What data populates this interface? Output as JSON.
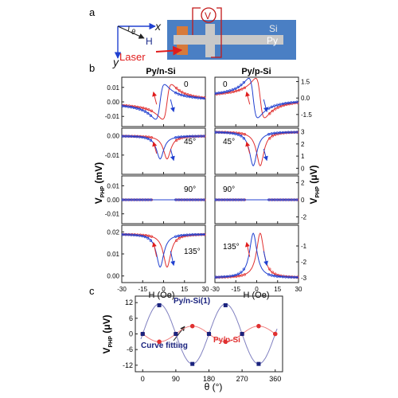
{
  "labels": {
    "a": "a",
    "b": "b",
    "c": "c"
  },
  "schematic": {
    "x_label": "x",
    "y_label": "y",
    "h_label": "H",
    "theta_label": "θ",
    "si_label": "Si",
    "py_label": "Py",
    "v_label": "V",
    "laser_label": "Laser",
    "colors": {
      "substrate": "#4a7fc4",
      "strip": "#c8c8c8",
      "laser_spot": "#d77a3a",
      "laser": "#e01c1c"
    }
  },
  "panel_b": {
    "left_title": "Py/n-Si",
    "right_title": "Py/p-Si",
    "left_ylabel_main": "V",
    "left_ylabel_sub": "PHP",
    "left_ylabel_unit": "(mV)",
    "right_ylabel_main": "V",
    "right_ylabel_sub": "PHP",
    "right_ylabel_unit": "(μV)",
    "xlabel": "H (Oe)",
    "colors": {
      "red": "#e03030",
      "blue": "#2040d0"
    }
  },
  "panel_c": {
    "ylabel_main": "V",
    "ylabel_sub": "PHP",
    "ylabel_unit": "(μV)",
    "xlabel": "θ (°)",
    "annotation": "Curve fitting",
    "colors": {
      "n": "#1a237e",
      "p": "#e03030",
      "n_line": "#8080c0",
      "p_line": "#f08080"
    }
  },
  "chart_data": [
    {
      "type": "line",
      "panel": "b",
      "column": "Py/n-Si",
      "xlabel": "H (Oe)",
      "ylabel": "VPHP (mV)",
      "xlim": [
        -30,
        30
      ],
      "xticks": [
        "-30",
        "-15",
        "0",
        "15",
        "30"
      ],
      "rows": [
        {
          "angle": "0",
          "ylim": [
            -0.017,
            0.017
          ],
          "yticks": [
            0.01,
            0.0,
            -0.01
          ],
          "yticklabels": [
            "0.01",
            "0.00",
            "-0.01"
          ],
          "amp": 0.012,
          "shape": "antisym"
        },
        {
          "angle": "45°",
          "ylim": [
            -0.02,
            0.004
          ],
          "yticks": [
            0.0,
            -0.01
          ],
          "yticklabels": [
            "0.00",
            "-0.01"
          ],
          "amp": -0.012,
          "shape": "sym"
        },
        {
          "angle": "90°",
          "ylim": [
            -0.017,
            0.017
          ],
          "yticks": [
            0.01,
            0.0,
            -0.01
          ],
          "yticklabels": [
            "0.01",
            "0.00",
            "-0.01"
          ],
          "amp": 0.0,
          "shape": "flat"
        },
        {
          "angle": "135°",
          "ylim": [
            -0.003,
            0.023
          ],
          "yticks": [
            0.02,
            0.01,
            0.0
          ],
          "yticklabels": [
            "0.02",
            "0.01",
            "0.00"
          ],
          "amp": -0.015,
          "shape": "sym",
          "offset": 0.019
        }
      ]
    },
    {
      "type": "line",
      "panel": "b",
      "column": "Py/p-Si",
      "xlabel": "H (Oe)",
      "ylabel": "VPHP (μV)",
      "xlim": [
        -30,
        30
      ],
      "xticks": [
        "-30",
        "-15",
        "0",
        "15",
        "30"
      ],
      "rows": [
        {
          "angle": "0",
          "ylim": [
            -2.6,
            1.9
          ],
          "yticks": [
            1.5,
            0.0,
            -1.5
          ],
          "yticklabels": [
            "1.5",
            "0.0",
            "-1.5"
          ],
          "amp": -1.8,
          "shape": "antisym"
        },
        {
          "angle": "45°",
          "ylim": [
            -0.5,
            3.3
          ],
          "yticks": [
            3,
            2,
            1,
            0
          ],
          "yticklabels": [
            "3",
            "2",
            "1",
            "0"
          ],
          "amp": -2.8,
          "shape": "sym",
          "offset": 3.0
        },
        {
          "angle": "90°",
          "ylim": [
            -2.8,
            2.8
          ],
          "yticks": [
            2,
            0,
            -2
          ],
          "yticklabels": [
            "2",
            "0",
            "-2"
          ],
          "amp": 0.0,
          "shape": "flat"
        },
        {
          "angle": "135°",
          "ylim": [
            -3.3,
            0.3
          ],
          "yticks": [
            -1,
            -2,
            -3
          ],
          "yticklabels": [
            "-1",
            "-2",
            "-3"
          ],
          "amp": 2.8,
          "shape": "sym",
          "offset": -3.0
        }
      ]
    },
    {
      "type": "scatter",
      "panel": "c",
      "xlabel": "θ (°)",
      "ylabel": "VPHP (μV)",
      "xlim": [
        -20,
        380
      ],
      "ylim": [
        -14.5,
        14.5
      ],
      "xticks": [
        0,
        90,
        180,
        270,
        360
      ],
      "yticks": [
        12,
        6,
        0,
        -6,
        -12
      ],
      "series": [
        {
          "name": "Py/n-Si(1)",
          "x": [
            0,
            45,
            90,
            135,
            180,
            225,
            270,
            315
          ],
          "y": [
            0,
            11,
            0,
            -11.5,
            0,
            11,
            0,
            -11.5
          ]
        },
        {
          "name": "Py/p-Si",
          "x": [
            0,
            45,
            90,
            135,
            180,
            225,
            270,
            315,
            360
          ],
          "y": [
            0,
            -3,
            0,
            3,
            0,
            -3,
            0,
            3,
            0
          ]
        }
      ]
    }
  ]
}
